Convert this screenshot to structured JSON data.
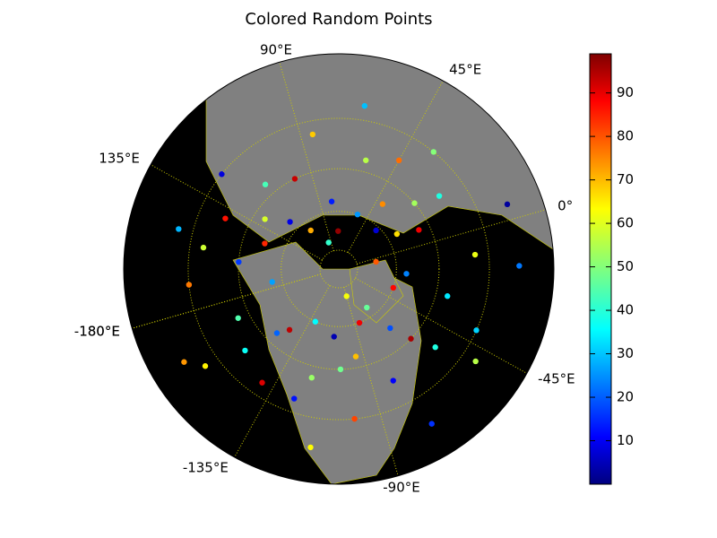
{
  "chart_data": {
    "type": "scatter",
    "title": "Colored Random Points",
    "projection": "north polar stereographic",
    "boundinglat": 0,
    "meridians": [
      {
        "value": 90,
        "label": "90°E"
      },
      {
        "value": 45,
        "label": "45°E"
      },
      {
        "value": 0,
        "label": "0°"
      },
      {
        "value": -45,
        "label": "-45°E"
      },
      {
        "value": -90,
        "label": "-90°E"
      },
      {
        "value": -135,
        "label": "-135°E"
      },
      {
        "value": -180,
        "label": "-180°E"
      },
      {
        "value": 180,
        "label": "180°E"
      },
      {
        "value": 135,
        "label": "135°E"
      }
    ],
    "parallels": [
      20,
      40,
      60,
      80
    ],
    "lon": [
      100,
      80,
      60,
      40,
      30,
      20,
      10,
      -10,
      -20,
      -40,
      -60,
      -70,
      -80,
      -95,
      -100,
      -110,
      -120,
      -130,
      -140,
      -150,
      -160,
      -170,
      170,
      160,
      150,
      140,
      130,
      120,
      110,
      95,
      75,
      55,
      35,
      15,
      5,
      -5,
      -30,
      -50,
      -65,
      -85,
      -105,
      -115,
      -125,
      -145,
      -155,
      -165,
      175,
      155,
      145,
      125,
      115,
      85,
      65,
      45,
      25,
      -15,
      -35,
      -55,
      -75,
      -90
    ],
    "lat": [
      40,
      55,
      35,
      50,
      62,
      30,
      45,
      25,
      55,
      20,
      40,
      65,
      30,
      45,
      20,
      55,
      35,
      60,
      25,
      45,
      15,
      35,
      20,
      40,
      15,
      30,
      45,
      55,
      65,
      75,
      70,
      60,
      20,
      55,
      10,
      70,
      35,
      15,
      50,
      60,
      40,
      10,
      25,
      50,
      30,
      10,
      55,
      25,
      50,
      20,
      35,
      25,
      15,
      30,
      40,
      10,
      60,
      30,
      10,
      75
    ],
    "values": [
      92,
      15,
      55,
      73,
      8,
      40,
      88,
      60,
      25,
      33,
      95,
      47,
      12,
      68,
      80,
      5,
      52,
      37,
      90,
      22,
      63,
      45,
      75,
      18,
      30,
      85,
      58,
      10,
      70,
      42,
      97,
      27,
      50,
      65,
      3,
      78,
      35,
      55,
      20,
      88,
      48,
      62,
      14,
      93,
      38,
      72,
      28,
      57,
      83,
      9,
      44,
      67,
      31,
      76,
      53,
      24,
      86,
      40,
      17,
      61
    ],
    "colorbar": {
      "clim": [
        0,
        99
      ],
      "ticks": [
        10,
        20,
        30,
        40,
        50,
        60,
        70,
        80,
        90
      ]
    }
  }
}
